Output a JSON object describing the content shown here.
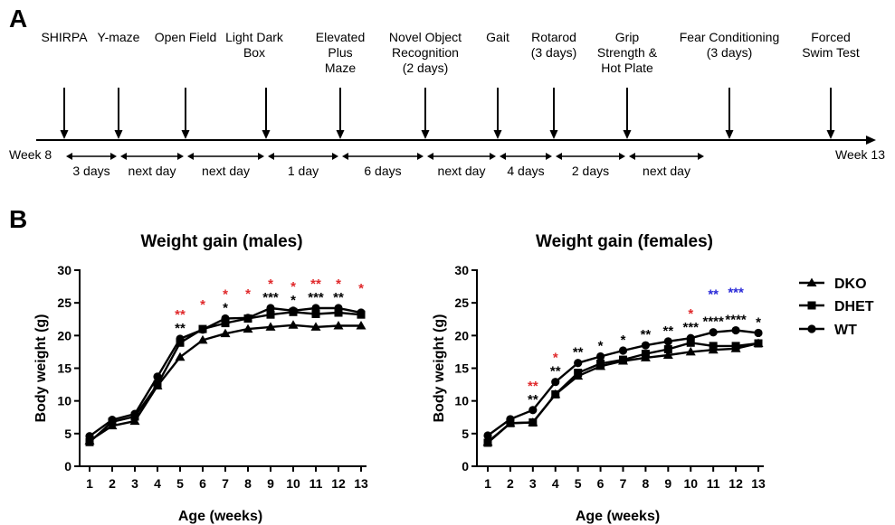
{
  "panel_a": {
    "label": "A",
    "events": [
      {
        "lines": [
          "SHIRPA"
        ]
      },
      {
        "lines": [
          "Y-maze"
        ]
      },
      {
        "lines": [
          "Open Field"
        ]
      },
      {
        "lines": [
          "Light Dark",
          "Box"
        ]
      },
      {
        "lines": [
          "Elevated",
          "Plus",
          "Maze"
        ]
      },
      {
        "lines": [
          "Novel Object",
          "Recognition",
          "(2 days)"
        ]
      },
      {
        "lines": [
          "Gait"
        ]
      },
      {
        "lines": [
          "Rotarod",
          "(3 days)"
        ]
      },
      {
        "lines": [
          "Grip",
          "Strength &",
          "Hot Plate"
        ]
      },
      {
        "lines": [
          "Fear Conditioning",
          "(3 days)"
        ]
      },
      {
        "lines": [
          "Forced",
          "Swim Test"
        ]
      }
    ],
    "start_label": "Week 8",
    "end_label": "Week 13",
    "intervals": [
      "3 days",
      "next day",
      "next day",
      "1 day",
      "6 days",
      "next day",
      "4 days",
      "2 days",
      "next day"
    ]
  },
  "panel_b": {
    "label": "B",
    "legend": [
      {
        "name": "DKO",
        "marker": "triangle"
      },
      {
        "name": "DHET",
        "marker": "square"
      },
      {
        "name": "WT",
        "marker": "circle"
      }
    ]
  },
  "chart_data": [
    {
      "type": "line",
      "title": "Weight gain (males)",
      "xlabel": "Age (weeks)",
      "ylabel": "Body weight (g)",
      "x": [
        1,
        2,
        3,
        4,
        5,
        6,
        7,
        8,
        9,
        10,
        11,
        12,
        13
      ],
      "ylim": [
        0,
        30
      ],
      "yticks": [
        0,
        5,
        10,
        15,
        20,
        25,
        30
      ],
      "series": [
        {
          "name": "DKO",
          "marker": "triangle",
          "values": [
            3.9,
            6.2,
            6.9,
            12.3,
            16.7,
            19.3,
            20.3,
            21.0,
            21.3,
            21.6,
            21.3,
            21.5,
            21.5
          ]
        },
        {
          "name": "DHET",
          "marker": "square",
          "values": [
            3.7,
            6.8,
            7.6,
            12.5,
            18.9,
            21.0,
            21.9,
            22.6,
            23.2,
            23.6,
            23.3,
            23.5,
            23.2
          ]
        },
        {
          "name": "WT",
          "marker": "circle",
          "values": [
            4.6,
            7.1,
            8.0,
            13.7,
            19.5,
            20.9,
            22.6,
            22.7,
            24.2,
            23.8,
            24.2,
            24.2,
            23.5
          ]
        }
      ],
      "annotations": [
        {
          "x": 5,
          "red": "**",
          "black": "**"
        },
        {
          "x": 6,
          "red": "*",
          "black": ""
        },
        {
          "x": 7,
          "red": "*",
          "black": "*"
        },
        {
          "x": 8,
          "red": "*",
          "black": ""
        },
        {
          "x": 9,
          "red": "*",
          "black": "***"
        },
        {
          "x": 10,
          "red": "*",
          "black": "*"
        },
        {
          "x": 11,
          "red": "**",
          "black": "***"
        },
        {
          "x": 12,
          "red": "*",
          "black": "**"
        },
        {
          "x": 13,
          "red": "*",
          "black": ""
        }
      ]
    },
    {
      "type": "line",
      "title": "Weight gain (females)",
      "xlabel": "Age (weeks)",
      "ylabel": "Body weight (g)",
      "x": [
        1,
        2,
        3,
        4,
        5,
        6,
        7,
        8,
        9,
        10,
        11,
        12,
        13
      ],
      "ylim": [
        0,
        30
      ],
      "yticks": [
        0,
        5,
        10,
        15,
        20,
        25,
        30
      ],
      "series": [
        {
          "name": "DKO",
          "marker": "triangle",
          "values": [
            3.7,
            6.6,
            6.7,
            11.0,
            13.8,
            15.3,
            16.1,
            16.6,
            17.0,
            17.5,
            17.8,
            18.0,
            18.8
          ]
        },
        {
          "name": "DHET",
          "marker": "square",
          "values": [
            3.6,
            6.6,
            6.7,
            11.0,
            14.3,
            15.7,
            16.3,
            17.2,
            17.9,
            18.9,
            18.4,
            18.4,
            18.8
          ]
        },
        {
          "name": "WT",
          "marker": "circle",
          "values": [
            4.7,
            7.2,
            8.6,
            12.9,
            15.8,
            16.8,
            17.7,
            18.5,
            19.1,
            19.6,
            20.5,
            20.8,
            20.4
          ]
        }
      ],
      "annotations": [
        {
          "x": 3,
          "blue": "",
          "red": "**",
          "black": "**"
        },
        {
          "x": 4,
          "blue": "",
          "red": "*",
          "black": "**"
        },
        {
          "x": 5,
          "blue": "",
          "red": "",
          "black": "**"
        },
        {
          "x": 6,
          "blue": "",
          "red": "",
          "black": "*"
        },
        {
          "x": 7,
          "blue": "",
          "red": "",
          "black": "*"
        },
        {
          "x": 8,
          "blue": "",
          "red": "",
          "black": "**"
        },
        {
          "x": 9,
          "blue": "",
          "red": "",
          "black": "**"
        },
        {
          "x": 10,
          "blue": "",
          "red": "*",
          "black": "***"
        },
        {
          "x": 11,
          "blue": "**",
          "red": "",
          "black": "****"
        },
        {
          "x": 12,
          "blue": "***",
          "red": "",
          "black": "****"
        },
        {
          "x": 13,
          "blue": "",
          "red": "",
          "black": "*"
        }
      ]
    }
  ],
  "colors": {
    "ink": "#000000",
    "red": "#e0292b",
    "blue": "#2a2ad8"
  }
}
